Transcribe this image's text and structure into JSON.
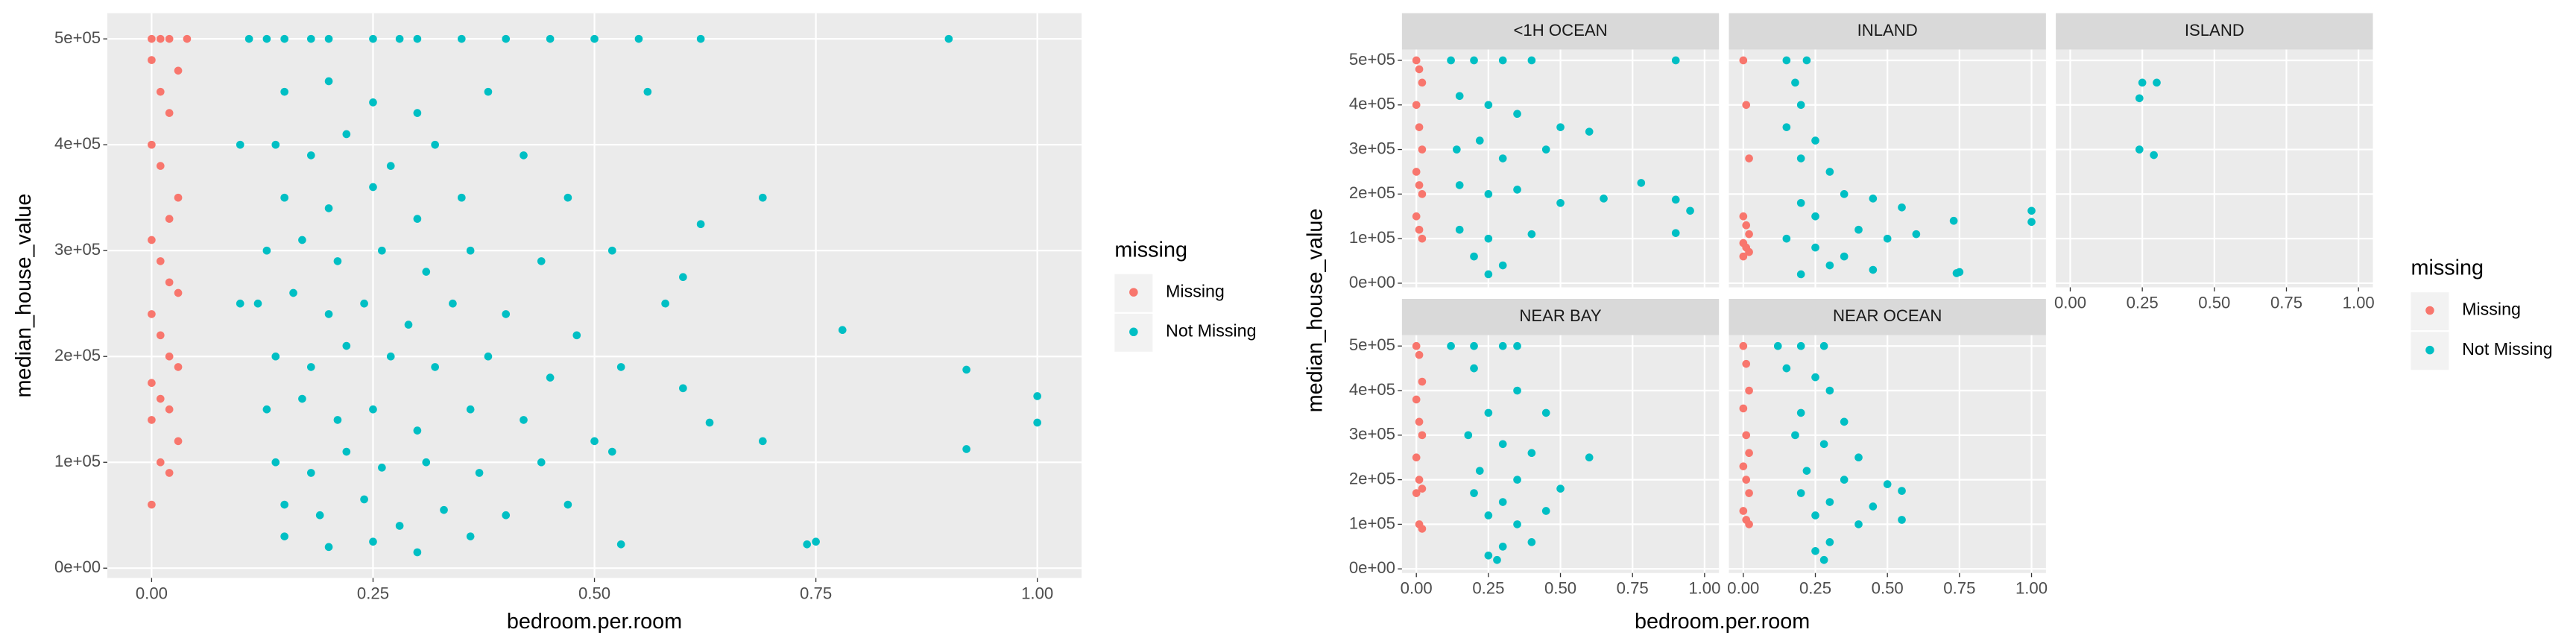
{
  "chart_data": [
    {
      "type": "scatter",
      "x_label": "bedroom.per.room",
      "y_label": "median_house_value",
      "legend_title": "missing",
      "xlim": [
        -0.05,
        1.05
      ],
      "ylim": [
        -9250,
        524250
      ],
      "xticks": [
        {
          "value": 0,
          "label": "0.00"
        },
        0.25,
        {
          "value": 0.5,
          "label": "0.50"
        },
        0.75,
        {
          "value": 1,
          "label": "1.00"
        }
      ],
      "yticks": [
        {
          "value": 0,
          "label": "0e+00"
        },
        {
          "value": 100000,
          "label": "1e+05"
        },
        {
          "value": 200000,
          "label": "2e+05"
        },
        {
          "value": 300000,
          "label": "3e+05"
        },
        {
          "value": 400000,
          "label": "4e+05"
        },
        {
          "value": 500000,
          "label": "5e+05"
        }
      ],
      "grid": true,
      "series": [
        {
          "name": "Missing",
          "color": "#F8766D",
          "x": [
            0.0,
            0.01,
            0.02,
            0.0,
            0.03,
            0.01,
            0.02,
            0.0,
            0.01,
            0.03,
            0.02,
            0.0,
            0.01,
            0.02,
            0.03,
            0.0,
            0.01,
            0.02,
            0.03,
            0.0,
            0.01,
            0.02,
            0.0,
            0.03,
            0.01,
            0.02,
            0.0,
            0.04
          ],
          "y": [
            500001,
            500001,
            500001,
            480000,
            470000,
            450000,
            430000,
            400000,
            380000,
            350000,
            330000,
            310000,
            290000,
            270000,
            260000,
            240000,
            220000,
            200000,
            190000,
            175000,
            160000,
            150000,
            140000,
            120000,
            100000,
            90000,
            60000,
            500001
          ]
        },
        {
          "name": "Not Missing",
          "color": "#00BFC4",
          "x": [
            0.15,
            0.2,
            0.25,
            0.3,
            0.35,
            0.4,
            0.45,
            0.5,
            0.55,
            0.62,
            0.9,
            0.11,
            0.13,
            0.18,
            0.28,
            0.15,
            0.2,
            0.25,
            0.3,
            0.38,
            0.56,
            0.14,
            0.18,
            0.22,
            0.27,
            0.32,
            0.42,
            0.1,
            0.15,
            0.2,
            0.25,
            0.3,
            0.35,
            0.47,
            0.69,
            0.62,
            0.13,
            0.17,
            0.21,
            0.26,
            0.31,
            0.36,
            0.44,
            0.6,
            0.52,
            0.12,
            0.16,
            0.2,
            0.24,
            0.29,
            0.34,
            0.4,
            0.48,
            0.58,
            0.78,
            0.1,
            0.14,
            0.18,
            0.22,
            0.27,
            0.32,
            0.38,
            0.45,
            0.53,
            0.6,
            0.92,
            0.13,
            0.17,
            0.21,
            0.25,
            0.3,
            0.36,
            0.42,
            0.5,
            0.63,
            0.69,
            1.0,
            1.0,
            0.14,
            0.18,
            0.22,
            0.26,
            0.31,
            0.37,
            0.44,
            0.52,
            0.92,
            0.15,
            0.19,
            0.24,
            0.28,
            0.33,
            0.4,
            0.47,
            0.15,
            0.2,
            0.25,
            0.3,
            0.36,
            0.53,
            0.74,
            0.75
          ],
          "y": [
            500001,
            500001,
            500001,
            500001,
            500001,
            500001,
            500001,
            500001,
            500001,
            500001,
            500001,
            500001,
            500001,
            500001,
            500001,
            450000,
            460000,
            440000,
            430000,
            450000,
            450000,
            400000,
            390000,
            410000,
            380000,
            400000,
            390000,
            400000,
            350000,
            340000,
            360000,
            330000,
            350000,
            350000,
            350000,
            325000,
            300000,
            310000,
            290000,
            300000,
            280000,
            300000,
            290000,
            275000,
            300000,
            250000,
            260000,
            240000,
            250000,
            230000,
            250000,
            240000,
            220000,
            250000,
            225000,
            250000,
            200000,
            190000,
            210000,
            200000,
            190000,
            200000,
            180000,
            190000,
            170000,
            187500,
            150000,
            160000,
            140000,
            150000,
            130000,
            150000,
            140000,
            120000,
            137500,
            120000,
            162500,
            137500,
            100000,
            90000,
            110000,
            95000,
            100000,
            90000,
            100000,
            110000,
            112500,
            60000,
            50000,
            65000,
            40000,
            55000,
            50000,
            60000,
            30000,
            20000,
            25000,
            15000,
            30000,
            22500,
            22500,
            25000
          ]
        }
      ]
    },
    {
      "type": "facet-scatter",
      "x_label": "bedroom.per.room",
      "y_label": "median_house_value",
      "legend_title": "missing",
      "xlim": [
        -0.05,
        1.05
      ],
      "ylim": [
        -9250,
        524250
      ],
      "xticks": [
        {
          "value": 0,
          "label": "0.00"
        },
        0.25,
        {
          "value": 0.5,
          "label": "0.50"
        },
        0.75,
        {
          "value": 1,
          "label": "1.00"
        }
      ],
      "yticks": [
        {
          "value": 0,
          "label": "0e+00"
        },
        {
          "value": 100000,
          "label": "1e+05"
        },
        {
          "value": 200000,
          "label": "2e+05"
        },
        {
          "value": 300000,
          "label": "3e+05"
        },
        {
          "value": 400000,
          "label": "4e+05"
        },
        {
          "value": 500000,
          "label": "5e+05"
        }
      ],
      "grid": true,
      "facets": [
        "<1H OCEAN",
        "INLAND",
        "ISLAND",
        "NEAR BAY",
        "NEAR OCEAN"
      ],
      "series": [
        {
          "name": "Missing",
          "color": "#F8766D",
          "x": [
            [
              0,
              0.01,
              0.02,
              0,
              0.01,
              0.02,
              0,
              0.01,
              0.02,
              0,
              0.01,
              0.02
            ],
            [
              0,
              0.01,
              0.02,
              0,
              0.01,
              0.02,
              0,
              0.01,
              0.02,
              0
            ],
            [],
            [
              0,
              0.01,
              0.02,
              0,
              0.01,
              0.02,
              0,
              0.01,
              0.02,
              0,
              0.01,
              0.02
            ],
            [
              0,
              0.01,
              0.02,
              0,
              0.01,
              0.02,
              0,
              0.01,
              0.02,
              0,
              0.01,
              0.02
            ]
          ],
          "y": [
            [
              500001,
              480000,
              450000,
              400000,
              350000,
              300000,
              250000,
              220000,
              200000,
              150000,
              120000,
              100000
            ],
            [
              500001,
              400000,
              280000,
              150000,
              130000,
              110000,
              90000,
              80000,
              70000,
              60000
            ],
            [],
            [
              500001,
              480000,
              420000,
              380000,
              330000,
              300000,
              250000,
              200000,
              180000,
              170000,
              100000,
              90000
            ],
            [
              500001,
              460000,
              400000,
              360000,
              300000,
              260000,
              230000,
              200000,
              170000,
              130000,
              110000,
              100000
            ]
          ]
        },
        {
          "name": "Not Missing",
          "color": "#00BFC4",
          "x": [
            [
              0.12,
              0.2,
              0.3,
              0.4,
              0.9,
              0.15,
              0.25,
              0.35,
              0.5,
              0.6,
              0.14,
              0.22,
              0.3,
              0.45,
              0.78,
              0.15,
              0.25,
              0.35,
              0.5,
              0.65,
              0.9,
              0.95,
              0.9,
              0.15,
              0.25,
              0.4,
              0.2,
              0.3,
              0.25
            ],
            [
              0.15,
              0.22,
              0.18,
              0.2,
              0.15,
              0.25,
              0.2,
              0.3,
              0.35,
              0.45,
              0.55,
              0.2,
              0.25,
              0.4,
              0.5,
              0.6,
              0.73,
              1.0,
              1.0,
              0.15,
              0.25,
              0.35,
              0.3,
              0.45,
              0.74,
              0.75,
              0.2
            ],
            [
              0.25,
              0.3,
              0.24,
              0.24,
              0.29
            ],
            [
              0.12,
              0.2,
              0.3,
              0.35,
              0.2,
              0.35,
              0.45,
              0.25,
              0.18,
              0.3,
              0.4,
              0.6,
              0.22,
              0.35,
              0.5,
              0.2,
              0.3,
              0.45,
              0.25,
              0.35,
              0.4,
              0.3,
              0.25,
              0.28
            ],
            [
              0.12,
              0.2,
              0.28,
              0.15,
              0.25,
              0.3,
              0.2,
              0.35,
              0.18,
              0.28,
              0.4,
              0.22,
              0.35,
              0.5,
              0.55,
              0.2,
              0.3,
              0.45,
              0.25,
              0.4,
              0.55,
              0.3,
              0.25,
              0.28
            ]
          ],
          "y": [
            [
              500001,
              500001,
              500001,
              500001,
              500001,
              420000,
              400000,
              380000,
              350000,
              340000,
              300000,
              320000,
              280000,
              300000,
              225000,
              220000,
              200000,
              210000,
              180000,
              190000,
              187500,
              162500,
              112500,
              120000,
              100000,
              110000,
              60000,
              40000,
              20000
            ],
            [
              500001,
              500001,
              450000,
              400000,
              350000,
              320000,
              280000,
              250000,
              200000,
              190000,
              170000,
              180000,
              150000,
              120000,
              100000,
              110000,
              140000,
              162500,
              137500,
              100000,
              80000,
              60000,
              40000,
              30000,
              22500,
              25000,
              20000
            ],
            [
              450000,
              450000,
              415000,
              300000,
              287500
            ],
            [
              500001,
              500001,
              500001,
              500001,
              450000,
              400000,
              350000,
              350000,
              300000,
              280000,
              260000,
              250000,
              220000,
              200000,
              180000,
              170000,
              150000,
              130000,
              120000,
              100000,
              60000,
              50000,
              30000,
              20000
            ],
            [
              500001,
              500001,
              500001,
              450000,
              430000,
              400000,
              350000,
              330000,
              300000,
              280000,
              250000,
              220000,
              200000,
              190000,
              175000,
              170000,
              150000,
              140000,
              120000,
              100000,
              110000,
              60000,
              40000,
              20000
            ]
          ]
        }
      ]
    }
  ]
}
